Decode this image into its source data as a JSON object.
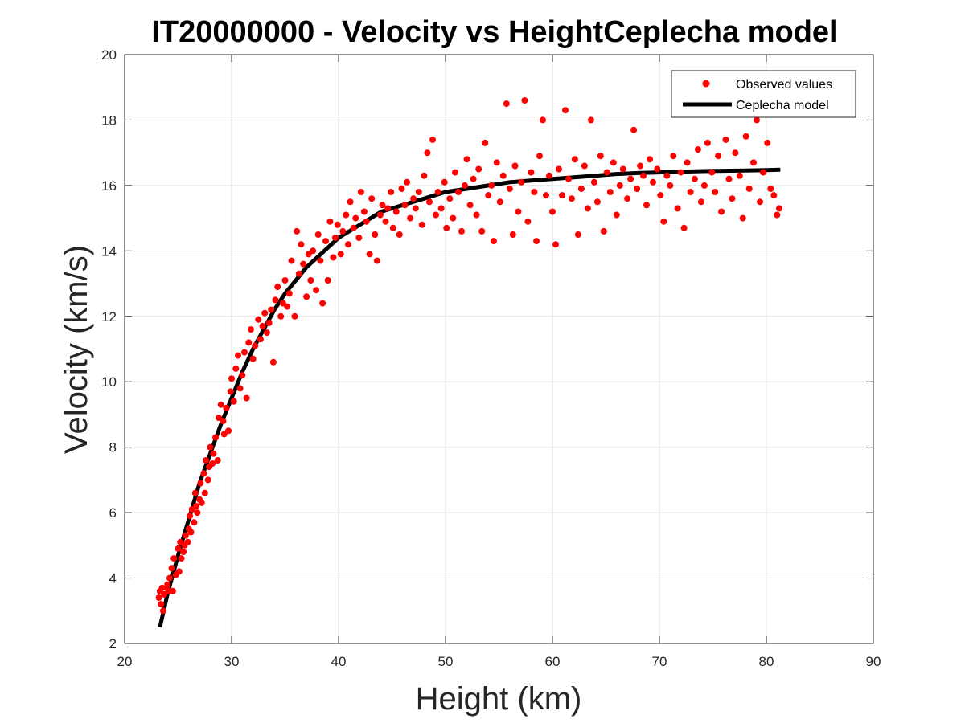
{
  "chart_data": {
    "type": "scatter",
    "title": "IT20000000 - Velocity vs HeightCeplecha model",
    "xlabel": "Height (km)",
    "ylabel": "Velocity (km/s)",
    "xlim": [
      20,
      90
    ],
    "ylim": [
      2,
      20
    ],
    "xticks": [
      20,
      30,
      40,
      50,
      60,
      70,
      80,
      90
    ],
    "yticks": [
      2,
      4,
      6,
      8,
      10,
      12,
      14,
      16,
      18,
      20
    ],
    "grid": true,
    "legend_position": "top-right",
    "series": [
      {
        "name": "Observed values",
        "kind": "scatter",
        "color": "#ff0000",
        "points": [
          [
            23.2,
            3.4
          ],
          [
            23.3,
            3.6
          ],
          [
            23.4,
            3.2
          ],
          [
            23.5,
            3.7
          ],
          [
            23.6,
            3.0
          ],
          [
            23.7,
            3.5
          ],
          [
            23.9,
            3.7
          ],
          [
            24.0,
            3.8
          ],
          [
            24.1,
            3.6
          ],
          [
            24.2,
            4.0
          ],
          [
            24.4,
            4.3
          ],
          [
            24.5,
            3.6
          ],
          [
            24.6,
            4.6
          ],
          [
            24.8,
            4.1
          ],
          [
            25.0,
            4.9
          ],
          [
            25.1,
            4.2
          ],
          [
            25.2,
            5.1
          ],
          [
            25.3,
            4.6
          ],
          [
            25.5,
            4.8
          ],
          [
            25.6,
            5.0
          ],
          [
            25.7,
            5.3
          ],
          [
            25.9,
            5.1
          ],
          [
            26.0,
            5.5
          ],
          [
            26.1,
            5.9
          ],
          [
            26.2,
            5.4
          ],
          [
            26.3,
            6.1
          ],
          [
            26.5,
            5.7
          ],
          [
            26.6,
            6.6
          ],
          [
            26.7,
            6.2
          ],
          [
            26.8,
            6.0
          ],
          [
            27.0,
            6.4
          ],
          [
            27.1,
            6.9
          ],
          [
            27.2,
            6.3
          ],
          [
            27.4,
            7.2
          ],
          [
            27.5,
            6.6
          ],
          [
            27.6,
            7.6
          ],
          [
            27.8,
            7.0
          ],
          [
            27.9,
            7.4
          ],
          [
            28.0,
            8.0
          ],
          [
            28.2,
            7.5
          ],
          [
            28.3,
            7.8
          ],
          [
            28.5,
            8.3
          ],
          [
            28.7,
            7.6
          ],
          [
            28.8,
            8.9
          ],
          [
            29.0,
            9.3
          ],
          [
            29.2,
            8.8
          ],
          [
            29.3,
            8.4
          ],
          [
            29.5,
            9.2
          ],
          [
            29.7,
            8.5
          ],
          [
            29.9,
            9.7
          ],
          [
            30.0,
            10.1
          ],
          [
            30.2,
            9.4
          ],
          [
            30.4,
            10.4
          ],
          [
            30.6,
            10.8
          ],
          [
            30.8,
            9.8
          ],
          [
            31.0,
            10.2
          ],
          [
            31.2,
            10.9
          ],
          [
            31.4,
            9.5
          ],
          [
            31.6,
            11.2
          ],
          [
            31.8,
            11.6
          ],
          [
            32.0,
            10.7
          ],
          [
            32.2,
            11.1
          ],
          [
            32.5,
            11.9
          ],
          [
            32.7,
            11.3
          ],
          [
            32.9,
            11.7
          ],
          [
            33.1,
            12.1
          ],
          [
            33.3,
            11.5
          ],
          [
            33.5,
            11.8
          ],
          [
            33.7,
            12.2
          ],
          [
            33.9,
            10.6
          ],
          [
            34.1,
            12.5
          ],
          [
            34.3,
            12.9
          ],
          [
            34.6,
            12.0
          ],
          [
            34.8,
            12.4
          ],
          [
            35.0,
            13.1
          ],
          [
            35.2,
            12.3
          ],
          [
            35.4,
            12.7
          ],
          [
            35.6,
            13.7
          ],
          [
            35.9,
            12.0
          ],
          [
            36.1,
            14.6
          ],
          [
            36.3,
            13.3
          ],
          [
            36.5,
            14.2
          ],
          [
            36.7,
            13.6
          ],
          [
            37.0,
            12.6
          ],
          [
            37.2,
            13.9
          ],
          [
            37.4,
            13.1
          ],
          [
            37.6,
            14.0
          ],
          [
            37.9,
            12.8
          ],
          [
            38.1,
            14.5
          ],
          [
            38.3,
            13.7
          ],
          [
            38.5,
            12.4
          ],
          [
            38.8,
            14.3
          ],
          [
            39.0,
            13.1
          ],
          [
            39.2,
            14.9
          ],
          [
            39.5,
            13.8
          ],
          [
            39.7,
            14.4
          ],
          [
            39.9,
            14.8
          ],
          [
            40.2,
            13.9
          ],
          [
            40.4,
            14.6
          ],
          [
            40.7,
            15.1
          ],
          [
            40.9,
            14.2
          ],
          [
            41.1,
            15.5
          ],
          [
            41.4,
            14.7
          ],
          [
            41.6,
            15.0
          ],
          [
            41.9,
            14.4
          ],
          [
            42.1,
            15.8
          ],
          [
            42.4,
            15.2
          ],
          [
            42.6,
            14.9
          ],
          [
            42.9,
            13.9
          ],
          [
            43.1,
            15.6
          ],
          [
            43.4,
            14.5
          ],
          [
            43.6,
            13.7
          ],
          [
            43.9,
            15.1
          ],
          [
            44.1,
            15.4
          ],
          [
            44.4,
            14.9
          ],
          [
            44.6,
            15.3
          ],
          [
            44.9,
            15.8
          ],
          [
            45.1,
            14.7
          ],
          [
            45.4,
            15.2
          ],
          [
            45.7,
            14.5
          ],
          [
            45.9,
            15.9
          ],
          [
            46.2,
            15.4
          ],
          [
            46.4,
            16.1
          ],
          [
            46.7,
            15.0
          ],
          [
            47.0,
            15.6
          ],
          [
            47.2,
            15.3
          ],
          [
            47.5,
            15.8
          ],
          [
            47.8,
            14.8
          ],
          [
            48.0,
            16.3
          ],
          [
            48.3,
            17.0
          ],
          [
            48.5,
            15.5
          ],
          [
            48.8,
            17.4
          ],
          [
            49.1,
            15.1
          ],
          [
            49.3,
            15.8
          ],
          [
            49.6,
            15.3
          ],
          [
            49.9,
            16.1
          ],
          [
            50.1,
            14.7
          ],
          [
            50.4,
            15.6
          ],
          [
            50.7,
            15.0
          ],
          [
            50.9,
            16.4
          ],
          [
            51.2,
            15.8
          ],
          [
            51.5,
            14.6
          ],
          [
            51.8,
            16.0
          ],
          [
            52.0,
            16.8
          ],
          [
            52.3,
            15.4
          ],
          [
            52.6,
            16.2
          ],
          [
            52.9,
            15.1
          ],
          [
            53.1,
            16.5
          ],
          [
            53.4,
            14.6
          ],
          [
            53.7,
            17.3
          ],
          [
            54.0,
            15.7
          ],
          [
            54.3,
            16.0
          ],
          [
            54.5,
            14.3
          ],
          [
            54.8,
            16.7
          ],
          [
            55.1,
            15.5
          ],
          [
            55.4,
            16.3
          ],
          [
            55.7,
            18.5
          ],
          [
            56.0,
            15.9
          ],
          [
            56.3,
            14.5
          ],
          [
            56.5,
            16.6
          ],
          [
            56.8,
            15.2
          ],
          [
            57.1,
            16.1
          ],
          [
            57.4,
            18.6
          ],
          [
            57.7,
            14.9
          ],
          [
            58.0,
            16.4
          ],
          [
            58.3,
            15.8
          ],
          [
            58.5,
            14.3
          ],
          [
            58.8,
            16.9
          ],
          [
            59.1,
            18.0
          ],
          [
            59.4,
            15.7
          ],
          [
            59.7,
            16.3
          ],
          [
            60.0,
            15.2
          ],
          [
            60.3,
            14.2
          ],
          [
            60.6,
            16.5
          ],
          [
            60.9,
            15.7
          ],
          [
            61.2,
            18.3
          ],
          [
            61.5,
            16.2
          ],
          [
            61.8,
            15.6
          ],
          [
            62.1,
            16.8
          ],
          [
            62.4,
            14.5
          ],
          [
            62.7,
            15.9
          ],
          [
            63.0,
            16.6
          ],
          [
            63.3,
            15.3
          ],
          [
            63.6,
            18.0
          ],
          [
            63.9,
            16.1
          ],
          [
            64.2,
            15.5
          ],
          [
            64.5,
            16.9
          ],
          [
            64.8,
            14.6
          ],
          [
            65.1,
            16.4
          ],
          [
            65.4,
            15.8
          ],
          [
            65.7,
            16.7
          ],
          [
            66.0,
            15.1
          ],
          [
            66.3,
            16.0
          ],
          [
            66.6,
            16.5
          ],
          [
            67.0,
            15.6
          ],
          [
            67.3,
            16.2
          ],
          [
            67.6,
            17.7
          ],
          [
            67.9,
            15.9
          ],
          [
            68.2,
            16.6
          ],
          [
            68.5,
            16.3
          ],
          [
            68.8,
            15.4
          ],
          [
            69.1,
            16.8
          ],
          [
            69.4,
            16.1
          ],
          [
            69.8,
            16.5
          ],
          [
            70.1,
            15.7
          ],
          [
            70.4,
            14.9
          ],
          [
            70.7,
            16.3
          ],
          [
            71.0,
            16.0
          ],
          [
            71.3,
            16.9
          ],
          [
            71.7,
            15.3
          ],
          [
            72.0,
            16.4
          ],
          [
            72.3,
            14.7
          ],
          [
            72.6,
            16.7
          ],
          [
            72.9,
            15.8
          ],
          [
            73.3,
            16.2
          ],
          [
            73.6,
            17.1
          ],
          [
            73.9,
            15.5
          ],
          [
            74.2,
            16.0
          ],
          [
            74.5,
            17.3
          ],
          [
            74.9,
            16.4
          ],
          [
            75.2,
            15.8
          ],
          [
            75.5,
            16.9
          ],
          [
            75.8,
            15.2
          ],
          [
            76.2,
            17.4
          ],
          [
            76.5,
            16.2
          ],
          [
            76.8,
            15.6
          ],
          [
            77.1,
            17.0
          ],
          [
            77.5,
            16.3
          ],
          [
            77.8,
            15.0
          ],
          [
            78.1,
            17.5
          ],
          [
            78.4,
            15.9
          ],
          [
            78.8,
            16.7
          ],
          [
            79.1,
            18.0
          ],
          [
            79.4,
            15.5
          ],
          [
            79.7,
            16.4
          ],
          [
            80.1,
            17.3
          ],
          [
            80.4,
            15.9
          ],
          [
            80.7,
            15.7
          ],
          [
            81.0,
            15.1
          ],
          [
            81.2,
            15.3
          ]
        ]
      },
      {
        "name": "Ceplecha model",
        "kind": "line",
        "color": "#000000",
        "points": [
          [
            23.3,
            2.5
          ],
          [
            24.0,
            3.5
          ],
          [
            25.0,
            4.7
          ],
          [
            26.0,
            5.8
          ],
          [
            27.0,
            6.9
          ],
          [
            28.0,
            7.8
          ],
          [
            29.0,
            8.7
          ],
          [
            30.0,
            9.5
          ],
          [
            31.0,
            10.3
          ],
          [
            32.0,
            11.0
          ],
          [
            33.0,
            11.6
          ],
          [
            34.0,
            12.2
          ],
          [
            35.0,
            12.7
          ],
          [
            36.0,
            13.1
          ],
          [
            37.0,
            13.5
          ],
          [
            38.0,
            13.8
          ],
          [
            39.0,
            14.1
          ],
          [
            40.0,
            14.4
          ],
          [
            42.0,
            14.8
          ],
          [
            44.0,
            15.2
          ],
          [
            46.0,
            15.4
          ],
          [
            48.0,
            15.6
          ],
          [
            50.0,
            15.8
          ],
          [
            52.0,
            15.9
          ],
          [
            54.0,
            16.0
          ],
          [
            56.0,
            16.1
          ],
          [
            58.0,
            16.15
          ],
          [
            60.0,
            16.2
          ],
          [
            62.0,
            16.25
          ],
          [
            64.0,
            16.3
          ],
          [
            66.0,
            16.35
          ],
          [
            68.0,
            16.38
          ],
          [
            70.0,
            16.4
          ],
          [
            72.0,
            16.42
          ],
          [
            74.0,
            16.44
          ],
          [
            76.0,
            16.45
          ],
          [
            78.0,
            16.46
          ],
          [
            80.0,
            16.47
          ],
          [
            81.3,
            16.48
          ]
        ]
      }
    ]
  }
}
